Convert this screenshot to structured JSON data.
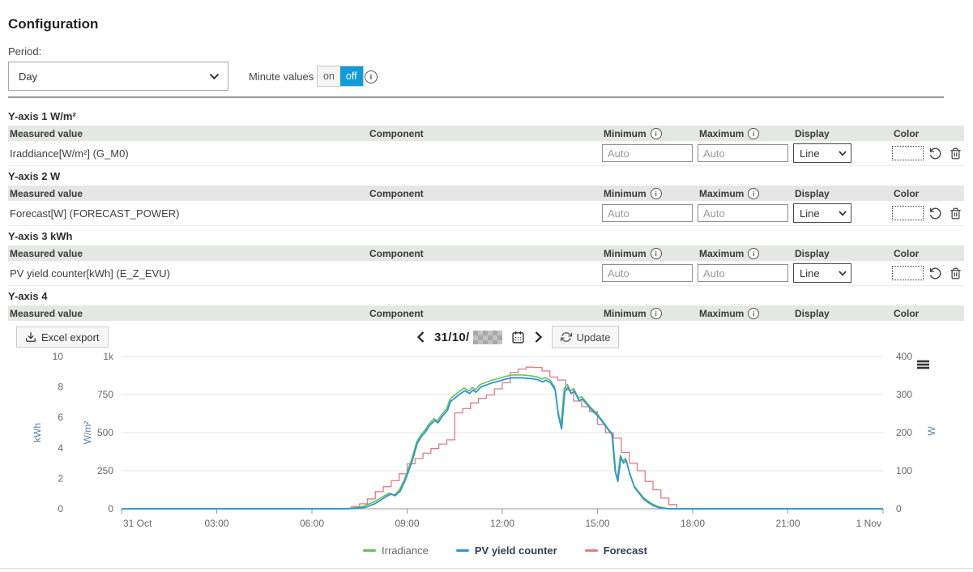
{
  "page": {
    "title": "Configuration",
    "period_label": "Period:",
    "period_value": "Day",
    "minute_values_label": "Minute values",
    "toggle_on": "on",
    "toggle_off": "off",
    "toggle_active_color": "#119bd7"
  },
  "table": {
    "headers": {
      "measured": "Measured value",
      "component": "Component",
      "minimum": "Minimum",
      "maximum": "Maximum",
      "display": "Display",
      "color": "Color"
    },
    "auto_placeholder": "Auto",
    "display_value": "Line",
    "info_glyph": "i"
  },
  "sections": [
    {
      "title": "Y-axis 1 W/m²",
      "rows": [
        {
          "measured": "Iraddiance[W/m²] (G_M0)",
          "component": "",
          "minimum": "",
          "maximum": "",
          "display": "Line",
          "color": ""
        }
      ]
    },
    {
      "title": "Y-axis 2 W",
      "rows": [
        {
          "measured": "Forecast[W] (FORECAST_POWER)",
          "component": "",
          "minimum": "",
          "maximum": "",
          "display": "Line",
          "color": ""
        }
      ]
    },
    {
      "title": "Y-axis 3 kWh",
      "rows": [
        {
          "measured": "PV yield counter[kWh] (E_Z_EVU)",
          "component": "",
          "minimum": "",
          "maximum": "",
          "display": "Line",
          "color": ""
        }
      ]
    },
    {
      "title": "Y-axis 4",
      "rows": []
    }
  ],
  "toolbar": {
    "excel_export": "Excel export",
    "date_prefix": "31/10/",
    "date_year_redacted": true,
    "update": "Update"
  },
  "icons": {
    "excel-export-icon": "download-tray",
    "chevron-left-icon": "<",
    "chevron-right-icon": ">",
    "calendar-icon": "calendar",
    "refresh-icon": "circular-arrows",
    "info-icon": "i-in-circle",
    "reset-color-icon": "counterclockwise-arrow",
    "delete-row-icon": "trash-can",
    "chart-menu-icon": "hamburger"
  },
  "chart_data": {
    "type": "line",
    "x_axis": {
      "range_hours": [
        0,
        24
      ],
      "tick_hours": [
        0,
        3,
        6,
        9,
        12,
        15,
        18,
        21,
        24
      ],
      "tick_labels": [
        "31 Oct",
        "03:00",
        "06:00",
        "09:00",
        "12:00",
        "15:00",
        "18:00",
        "21:00",
        "1 Nov"
      ]
    },
    "y_axes": [
      {
        "title": "kWh",
        "side": "left",
        "max": 10,
        "tick_values": [
          0,
          2,
          4,
          6,
          8,
          10
        ],
        "tick_labels": [
          "0",
          "2",
          "4",
          "6",
          "8",
          "10"
        ]
      },
      {
        "title": "W/m²",
        "side": "left",
        "max": 1000,
        "tick_values": [
          0,
          250,
          500,
          750,
          1000
        ],
        "tick_labels": [
          "0",
          "250",
          "500",
          "750",
          "1k"
        ]
      },
      {
        "title": "W",
        "side": "right",
        "max": 400,
        "tick_values": [
          0,
          100,
          200,
          300,
          400
        ],
        "tick_labels": [
          "0",
          "100",
          "200",
          "300",
          "400"
        ]
      }
    ],
    "grid": true,
    "legend_position": "bottom",
    "series": [
      {
        "name": "Irradiance",
        "axis": "W/m²",
        "color": "#68c05b",
        "width": 1.6,
        "step": false,
        "points": [
          [
            0,
            0
          ],
          [
            7,
            0
          ],
          [
            7.3,
            5
          ],
          [
            7.6,
            15
          ],
          [
            7.9,
            40
          ],
          [
            8.1,
            62
          ],
          [
            8.3,
            88
          ],
          [
            8.45,
            103
          ],
          [
            8.6,
            90
          ],
          [
            8.75,
            122
          ],
          [
            8.9,
            185
          ],
          [
            9,
            240
          ],
          [
            9.15,
            330
          ],
          [
            9.3,
            440
          ],
          [
            9.45,
            490
          ],
          [
            9.55,
            512
          ],
          [
            9.7,
            560
          ],
          [
            9.85,
            592
          ],
          [
            9.95,
            576
          ],
          [
            10.1,
            622
          ],
          [
            10.25,
            658
          ],
          [
            10.35,
            720
          ],
          [
            10.5,
            747
          ],
          [
            10.65,
            772
          ],
          [
            10.8,
            792
          ],
          [
            10.95,
            774
          ],
          [
            11.05,
            797
          ],
          [
            11.15,
            782
          ],
          [
            11.3,
            816
          ],
          [
            11.5,
            832
          ],
          [
            11.7,
            846
          ],
          [
            11.9,
            857
          ],
          [
            12.1,
            869
          ],
          [
            12.3,
            878
          ],
          [
            12.6,
            879
          ],
          [
            12.9,
            873
          ],
          [
            13.1,
            866
          ],
          [
            13.25,
            851
          ],
          [
            13.35,
            862
          ],
          [
            13.5,
            846
          ],
          [
            13.65,
            800
          ],
          [
            13.75,
            645
          ],
          [
            13.85,
            552
          ],
          [
            13.95,
            790
          ],
          [
            14.05,
            816
          ],
          [
            14.15,
            774
          ],
          [
            14.25,
            790
          ],
          [
            14.4,
            726
          ],
          [
            14.5,
            736
          ],
          [
            14.65,
            700
          ],
          [
            14.8,
            662
          ],
          [
            15,
            622
          ],
          [
            15.2,
            566
          ],
          [
            15.35,
            522
          ],
          [
            15.45,
            497
          ],
          [
            15.55,
            255
          ],
          [
            15.62,
            192
          ],
          [
            15.72,
            352
          ],
          [
            15.8,
            312
          ],
          [
            15.88,
            332
          ],
          [
            16,
            242
          ],
          [
            16.15,
            152
          ],
          [
            16.3,
            112
          ],
          [
            16.45,
            74
          ],
          [
            16.6,
            50
          ],
          [
            16.75,
            30
          ],
          [
            16.9,
            16
          ],
          [
            17.1,
            6
          ],
          [
            17.25,
            0
          ],
          [
            24,
            0
          ]
        ]
      },
      {
        "name": "PV yield counter",
        "axis": "kWh",
        "color": "#2e95d3",
        "width": 1.8,
        "step": false,
        "points": [
          [
            0,
            0
          ],
          [
            7.05,
            0
          ],
          [
            7.4,
            0.03
          ],
          [
            7.7,
            0.1
          ],
          [
            8,
            0.35
          ],
          [
            8.15,
            0.55
          ],
          [
            8.35,
            0.82
          ],
          [
            8.5,
            0.97
          ],
          [
            8.62,
            0.86
          ],
          [
            8.78,
            1.15
          ],
          [
            8.92,
            1.78
          ],
          [
            9.02,
            2.32
          ],
          [
            9.17,
            3.2
          ],
          [
            9.32,
            4.3
          ],
          [
            9.47,
            4.8
          ],
          [
            9.57,
            5.02
          ],
          [
            9.72,
            5.5
          ],
          [
            9.87,
            5.8
          ],
          [
            9.97,
            5.65
          ],
          [
            10.12,
            6.1
          ],
          [
            10.27,
            6.45
          ],
          [
            10.37,
            7.05
          ],
          [
            10.52,
            7.3
          ],
          [
            10.67,
            7.55
          ],
          [
            10.82,
            7.75
          ],
          [
            10.97,
            7.57
          ],
          [
            11.07,
            7.8
          ],
          [
            11.17,
            7.65
          ],
          [
            11.32,
            8
          ],
          [
            11.52,
            8.15
          ],
          [
            11.72,
            8.3
          ],
          [
            11.92,
            8.4
          ],
          [
            12.12,
            8.52
          ],
          [
            12.32,
            8.6
          ],
          [
            12.62,
            8.6
          ],
          [
            12.92,
            8.55
          ],
          [
            13.12,
            8.48
          ],
          [
            13.27,
            8.33
          ],
          [
            13.37,
            8.44
          ],
          [
            13.52,
            8.28
          ],
          [
            13.67,
            7.8
          ],
          [
            13.77,
            6.1
          ],
          [
            13.87,
            5.25
          ],
          [
            13.97,
            7.7
          ],
          [
            14.07,
            7.98
          ],
          [
            14.17,
            7.57
          ],
          [
            14.27,
            7.72
          ],
          [
            14.42,
            7.1
          ],
          [
            14.52,
            7.2
          ],
          [
            14.67,
            6.85
          ],
          [
            14.82,
            6.47
          ],
          [
            15.02,
            6.08
          ],
          [
            15.22,
            5.52
          ],
          [
            15.37,
            5.1
          ],
          [
            15.47,
            4.85
          ],
          [
            15.57,
            2.4
          ],
          [
            15.64,
            1.8
          ],
          [
            15.74,
            3.4
          ],
          [
            15.82,
            3
          ],
          [
            15.9,
            3.2
          ],
          [
            16.02,
            2.3
          ],
          [
            16.17,
            1.4
          ],
          [
            16.32,
            1
          ],
          [
            16.47,
            0.6
          ],
          [
            16.62,
            0.38
          ],
          [
            16.77,
            0.2
          ],
          [
            16.92,
            0.08
          ],
          [
            17.12,
            0.02
          ],
          [
            17.3,
            0
          ],
          [
            24,
            0
          ]
        ]
      },
      {
        "name": "Forecast",
        "axis": "W",
        "color": "#de7c82",
        "width": 1.3,
        "step": true,
        "points": [
          [
            0,
            0
          ],
          [
            7.25,
            6
          ],
          [
            7.5,
            13
          ],
          [
            7.75,
            26
          ],
          [
            8,
            45
          ],
          [
            8.25,
            58
          ],
          [
            8.5,
            74
          ],
          [
            8.75,
            92
          ],
          [
            9,
            118
          ],
          [
            9.25,
            132
          ],
          [
            9.5,
            146
          ],
          [
            9.75,
            158
          ],
          [
            10,
            170
          ],
          [
            10.25,
            181
          ],
          [
            10.5,
            252
          ],
          [
            10.75,
            263
          ],
          [
            11,
            278
          ],
          [
            11.25,
            290
          ],
          [
            11.5,
            299
          ],
          [
            11.75,
            315
          ],
          [
            12,
            331
          ],
          [
            12.25,
            358
          ],
          [
            12.5,
            367
          ],
          [
            12.75,
            372
          ],
          [
            13,
            371
          ],
          [
            13.25,
            362
          ],
          [
            13.5,
            346
          ],
          [
            13.75,
            338
          ],
          [
            14,
            312
          ],
          [
            14.25,
            283
          ],
          [
            14.5,
            268
          ],
          [
            14.75,
            255
          ],
          [
            15,
            222
          ],
          [
            15.25,
            200
          ],
          [
            15.5,
            186
          ],
          [
            15.75,
            148
          ],
          [
            16,
            120
          ],
          [
            16.25,
            100
          ],
          [
            16.5,
            72
          ],
          [
            16.75,
            50
          ],
          [
            17,
            28
          ],
          [
            17.25,
            11
          ],
          [
            17.5,
            0
          ],
          [
            24,
            0
          ]
        ]
      }
    ]
  }
}
